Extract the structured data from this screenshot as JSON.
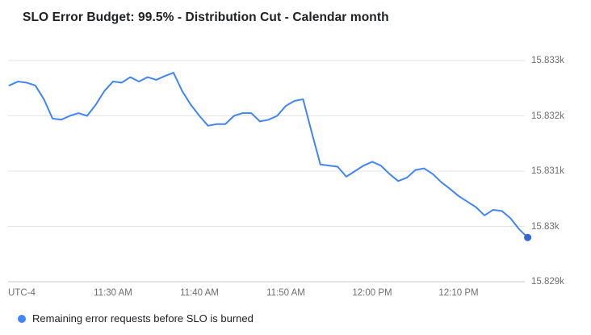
{
  "chart_data": {
    "type": "line",
    "title": "SLO Error Budget: 99.5% - Distribution Cut - Calendar month",
    "grid": true,
    "legend_position": "bottom-left",
    "x_axis": {
      "timezone_label": "UTC-4",
      "tick_labels": [
        "11:30 AM",
        "11:40 AM",
        "11:50 AM",
        "12:00 PM",
        "12:10 PM"
      ],
      "tick_minutes": [
        690,
        700,
        710,
        720,
        730
      ]
    },
    "y_axis": {
      "tick_labels": [
        "15.833k",
        "15.832k",
        "15.831k",
        "15.83k",
        "15.829k"
      ],
      "tick_values": [
        15833,
        15832,
        15831,
        15830,
        15829
      ]
    },
    "series": [
      {
        "name": "Remaining error requests before SLO is burned",
        "color": "#4285f4",
        "dot_color": "#3367d6",
        "x_start_minute": 678,
        "x_step_minutes": 1,
        "values": [
          15832.55,
          15832.62,
          15832.6,
          15832.55,
          15832.3,
          15831.95,
          15831.93,
          15832.0,
          15832.05,
          15832.0,
          15832.2,
          15832.45,
          15832.62,
          15832.6,
          15832.7,
          15832.62,
          15832.7,
          15832.65,
          15832.72,
          15832.78,
          15832.45,
          15832.2,
          15832.0,
          15831.82,
          15831.85,
          15831.85,
          15832.0,
          15832.05,
          15832.05,
          15831.9,
          15831.93,
          15832.0,
          15832.18,
          15832.27,
          15832.3,
          15831.7,
          15831.12,
          15831.1,
          15831.08,
          15830.9,
          15831.0,
          15831.1,
          15831.17,
          15831.1,
          15830.95,
          15830.82,
          15830.88,
          15831.02,
          15831.05,
          15830.95,
          15830.8,
          15830.68,
          15830.55,
          15830.45,
          15830.35,
          15830.2,
          15830.3,
          15830.28,
          15830.15,
          15829.95,
          15829.8
        ],
        "latest_value": 15829.8
      }
    ]
  }
}
